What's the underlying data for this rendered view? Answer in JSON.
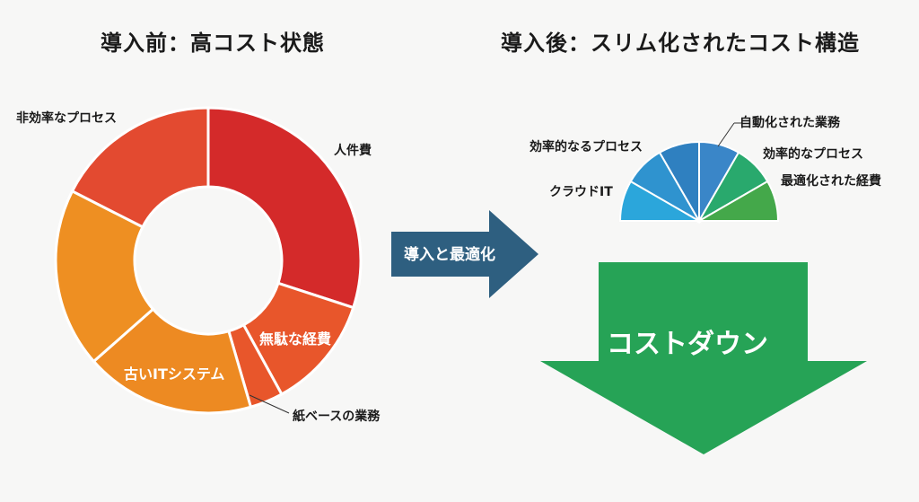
{
  "left_title": "導入前：高コスト状態",
  "right_title": "導入後：スリム化されたコスト構造",
  "before_chart": {
    "type": "donut",
    "segments": [
      {
        "label": "人件費",
        "color": "#d42a2a",
        "share": 0.3
      },
      {
        "label": "無駄な経費",
        "color": "#e8562b",
        "share": 0.12
      },
      {
        "label": "紙ベースの業務",
        "color": "#e8562b",
        "share": 0.035
      },
      {
        "label": "古いITシステム",
        "color": "#ed8a22",
        "share": 0.18
      },
      {
        "label": "",
        "color": "#ee8f22",
        "share": 0.19
      },
      {
        "label": "非効率なプロセス",
        "color": "#e34a30",
        "share": 0.175
      }
    ]
  },
  "arrow_label": "導入と最適化",
  "after_chart": {
    "type": "half-fan",
    "segments": [
      {
        "label": "クラウドIT",
        "color": "#2ba6db"
      },
      {
        "label": "",
        "color": "#2f93cf"
      },
      {
        "label": "効率的なるプロセス",
        "color": "#2f80c0"
      },
      {
        "label": "自動化された業務",
        "color": "#3a86c8"
      },
      {
        "label": "効率的なプロセス",
        "color": "#29a96d"
      },
      {
        "label": "最適化された経費",
        "color": "#44a84a"
      }
    ]
  },
  "down_arrow_label": "コストダウン",
  "colors": {
    "arrow": "#2e5f80",
    "down_arrow": "#26a356",
    "background": "#f7f7f6"
  }
}
